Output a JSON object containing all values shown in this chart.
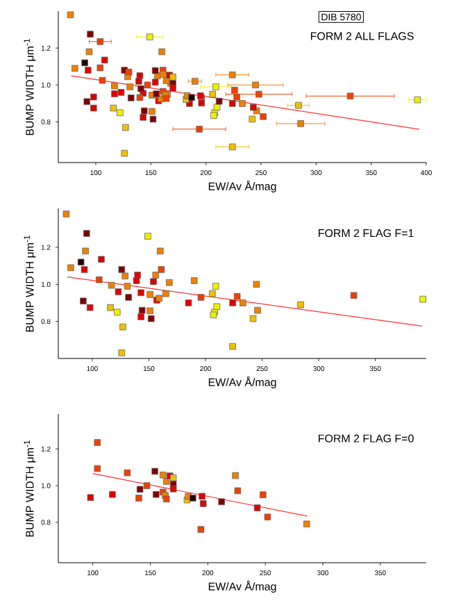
{
  "chart_data": [
    {
      "type": "scatter",
      "title": "FORM 2 ALL FLAGS",
      "xlabel": "EW/Av Å/mag",
      "ylabel": "BUMP WIDTH μm$^{-1}$",
      "annotations": [
        "DIB 5780"
      ],
      "xlim": [
        66,
        400
      ],
      "ylim": [
        0.58,
        1.4
      ],
      "xticks": [
        100,
        150,
        200,
        250,
        300,
        350,
        400
      ],
      "yticks": [
        {
          "value": 0.8,
          "label": "0.8"
        },
        {
          "value": 1.0,
          "label": "1.0"
        },
        {
          "value": 1.2,
          "label": "1.2"
        }
      ],
      "series": [
        {
          "marker": "square",
          "x": [
            77,
            95,
            81,
            94,
            90,
            93,
            108,
            106,
            92,
            98,
            117,
            116,
            122,
            123,
            126,
            129,
            131,
            132,
            127,
            126,
            140,
            139,
            143,
            144,
            143,
            149,
            151,
            151,
            152,
            154,
            156,
            157,
            159,
            160,
            161,
            165,
            168,
            185,
            190,
            196,
            206,
            209,
            208,
            210,
            207,
            224,
            228,
            233,
            224,
            242,
            246,
            245,
            284,
            331,
            392,
            98,
            104,
            104,
            117,
            130,
            141,
            140,
            147,
            154,
            155,
            161,
            161,
            163,
            164,
            164,
            167,
            170,
            170,
            170,
            182,
            183,
            187,
            194,
            195,
            196,
            212,
            224,
            226,
            243,
            248,
            252,
            286
          ],
          "values": [
            1.38,
            1.275,
            1.09,
            1.18,
            1.12,
            1.08,
            1.135,
            1.025,
            0.91,
            0.875,
            0.995,
            0.875,
            0.85,
            0.96,
            1.08,
            1.045,
            0.99,
            0.93,
            0.77,
            0.63,
            1.05,
            1.02,
            0.955,
            0.86,
            0.825,
            1.26,
            0.945,
            0.857,
            0.815,
            1.015,
            1.05,
            0.915,
            0.925,
            1.18,
            1.08,
            0.95,
            1.01,
            0.9,
            1.02,
            0.93,
            0.95,
            0.99,
            0.85,
            0.88,
            0.835,
            0.9,
            0.935,
            0.9,
            0.665,
            0.815,
            0.86,
            1.0,
            0.89,
            0.94,
            0.92,
            0.935,
            1.235,
            1.093,
            0.952,
            1.07,
            0.98,
            0.932,
            1.0,
            1.078,
            0.952,
            1.058,
            0.965,
            0.947,
            1.023,
            0.927,
            1.053,
            1.043,
            1.008,
            0.982,
            0.922,
            0.942,
            0.932,
            0.761,
            0.942,
            0.902,
            0.912,
            1.055,
            0.972,
            0.879,
            0.95,
            0.829,
            0.791
          ],
          "colors": [
            "#f08000",
            "#800000",
            "#f08000",
            "#f08000",
            "#200000",
            "#e00000",
            "#e00000",
            "#f04000",
            "#800000",
            "#e00000",
            "#f08000",
            "#f0c000",
            "#f0f000",
            "#e00000",
            "#800000",
            "#f08000",
            "#f08000",
            "#800000",
            "#f0c000",
            "#f0c000",
            "#e00000",
            "#e00000",
            "#e00000",
            "#800000",
            "#e00000",
            "#f0f000",
            "#f08000",
            "#f08000",
            "#800000",
            "#e00000",
            "#f08000",
            "#e00000",
            "#f08000",
            "#f08000",
            "#f04000",
            "#f08000",
            "#f08000",
            "#e00000",
            "#f08000",
            "#f04000",
            "#f0c000",
            "#f0f000",
            "#f0f000",
            "#f0f000",
            "#f0f000",
            "#e00000",
            "#f04000",
            "#f08000",
            "#f0c000",
            "#f0c000",
            "#f08000",
            "#f08000",
            "#f0c000",
            "#f04000",
            "#f0f000",
            "#e00000",
            "#f04000",
            "#f04000",
            "#e00000",
            "#f04000",
            "#800000",
            "#f04000",
            "#f04000",
            "#800000",
            "#800000",
            "#f08000",
            "#f04000",
            "#f08000",
            "#f08000",
            "#f04000",
            "#e00000",
            "#f0c000",
            "#800000",
            "#e00000",
            "#f0c000",
            "#f08000",
            "#200000",
            "#f04000",
            "#e00000",
            "#e00000",
            "#800000",
            "#f08000",
            "#f04000",
            "#e00000",
            "#f04000",
            "#f04000",
            "#f08000"
          ],
          "xerrors": [
            null,
            null,
            null,
            null,
            null,
            null,
            null,
            null,
            null,
            null,
            null,
            null,
            null,
            null,
            null,
            null,
            null,
            null,
            null,
            null,
            null,
            null,
            null,
            null,
            null,
            12,
            null,
            null,
            null,
            null,
            null,
            null,
            null,
            null,
            null,
            null,
            null,
            null,
            6,
            null,
            null,
            14,
            null,
            null,
            null,
            null,
            null,
            null,
            15,
            null,
            null,
            25,
            10,
            40,
            8,
            null,
            10,
            null,
            null,
            null,
            null,
            null,
            null,
            null,
            null,
            null,
            null,
            null,
            null,
            null,
            null,
            null,
            null,
            null,
            null,
            null,
            null,
            24,
            null,
            null,
            null,
            15,
            null,
            null,
            30,
            null,
            22
          ]
        },
        {
          "type": "line",
          "color": "#ff3030",
          "x": [
            77.7,
            393.7
          ],
          "values": [
            1.05,
            0.76
          ]
        }
      ]
    },
    {
      "type": "scatter",
      "title": "FORM 2 FLAG F=1",
      "xlabel": "EW/Av Å/mag",
      "ylabel": "BUMP WIDTH μm$^{-1}$",
      "xlim": [
        70,
        395
      ],
      "ylim": [
        0.6,
        1.41
      ],
      "xticks": [
        100,
        150,
        200,
        250,
        300,
        350
      ],
      "yticks": [
        {
          "value": 0.8,
          "label": "0.8"
        },
        {
          "value": 1.0,
          "label": "1.0"
        },
        {
          "value": 1.2,
          "label": "1.2"
        }
      ],
      "series": [
        {
          "marker": "square",
          "x": [
            77,
            95,
            81,
            94,
            90,
            93,
            108,
            106,
            92,
            98,
            117,
            116,
            122,
            123,
            126,
            129,
            131,
            132,
            127,
            126,
            140,
            139,
            143,
            144,
            143,
            149,
            151,
            151,
            152,
            154,
            156,
            157,
            159,
            160,
            161,
            165,
            168,
            185,
            190,
            196,
            206,
            209,
            208,
            210,
            207,
            224,
            228,
            233,
            224,
            242,
            246,
            245,
            284,
            331,
            392
          ],
          "values": [
            1.38,
            1.275,
            1.09,
            1.18,
            1.12,
            1.08,
            1.135,
            1.025,
            0.91,
            0.875,
            0.995,
            0.875,
            0.85,
            0.96,
            1.08,
            1.045,
            0.99,
            0.93,
            0.77,
            0.63,
            1.05,
            1.02,
            0.955,
            0.86,
            0.825,
            1.26,
            0.945,
            0.857,
            0.815,
            1.015,
            1.05,
            0.915,
            0.925,
            1.18,
            1.08,
            0.95,
            1.01,
            0.9,
            1.02,
            0.93,
            0.95,
            0.99,
            0.85,
            0.88,
            0.835,
            0.9,
            0.935,
            0.9,
            0.665,
            0.815,
            0.86,
            1.0,
            0.89,
            0.94,
            0.92
          ],
          "colors": [
            "#f08000",
            "#800000",
            "#f08000",
            "#f08000",
            "#200000",
            "#e00000",
            "#e00000",
            "#f04000",
            "#800000",
            "#e00000",
            "#f08000",
            "#f0c000",
            "#f0f000",
            "#e00000",
            "#800000",
            "#f08000",
            "#f08000",
            "#800000",
            "#f0c000",
            "#f0c000",
            "#e00000",
            "#e00000",
            "#e00000",
            "#800000",
            "#e00000",
            "#f0f000",
            "#f08000",
            "#f08000",
            "#800000",
            "#e00000",
            "#f08000",
            "#e00000",
            "#f08000",
            "#f08000",
            "#f04000",
            "#f08000",
            "#f08000",
            "#e00000",
            "#f08000",
            "#f04000",
            "#f0c000",
            "#f0f000",
            "#f0f000",
            "#f0f000",
            "#f0f000",
            "#e00000",
            "#f04000",
            "#f08000",
            "#f0c000",
            "#f0c000",
            "#f08000",
            "#f08000",
            "#f0c000",
            "#f04000",
            "#f0f000"
          ]
        },
        {
          "type": "line",
          "color": "#ff3030",
          "x": [
            77.8,
            391.2
          ],
          "values": [
            1.04,
            0.775
          ]
        }
      ]
    },
    {
      "type": "scatter",
      "title": "FORM 2 FLAG F=0",
      "xlabel": "EW/Av Å/mag",
      "ylabel": "BUMP WIDTH μm$^{-1}$",
      "xlim": [
        70,
        390
      ],
      "ylim": [
        0.58,
        1.39
      ],
      "xticks": [
        100,
        150,
        200,
        250,
        300,
        350
      ],
      "yticks": [
        {
          "value": 0.8,
          "label": "0.8"
        },
        {
          "value": 1.0,
          "label": "1.0"
        },
        {
          "value": 1.2,
          "label": "1.2"
        }
      ],
      "series": [
        {
          "marker": "square",
          "x": [
            98,
            104,
            104,
            117,
            130,
            141,
            140,
            147,
            154,
            155,
            161,
            161,
            163,
            164,
            164,
            167,
            170,
            170,
            170,
            182,
            183,
            187,
            194,
            195,
            196,
            212,
            224,
            226,
            243,
            248,
            252,
            286
          ],
          "values": [
            0.935,
            1.235,
            1.093,
            0.952,
            1.07,
            0.98,
            0.932,
            1.0,
            1.078,
            0.952,
            1.058,
            0.965,
            0.947,
            1.023,
            0.927,
            1.053,
            1.043,
            1.008,
            0.982,
            0.922,
            0.942,
            0.932,
            0.761,
            0.942,
            0.902,
            0.912,
            1.055,
            0.972,
            0.879,
            0.95,
            0.829,
            0.791
          ],
          "colors": [
            "#e00000",
            "#f04000",
            "#f04000",
            "#e00000",
            "#f04000",
            "#800000",
            "#f04000",
            "#f04000",
            "#800000",
            "#800000",
            "#f08000",
            "#f04000",
            "#f08000",
            "#f08000",
            "#f04000",
            "#e00000",
            "#f0c000",
            "#800000",
            "#e00000",
            "#f0c000",
            "#f08000",
            "#200000",
            "#f04000",
            "#e00000",
            "#e00000",
            "#800000",
            "#f08000",
            "#f04000",
            "#e00000",
            "#f04000",
            "#f04000",
            "#f08000"
          ]
        },
        {
          "type": "line",
          "color": "#ff3030",
          "x": [
            100,
            286.3
          ],
          "values": [
            1.066,
            0.834
          ]
        }
      ]
    }
  ]
}
